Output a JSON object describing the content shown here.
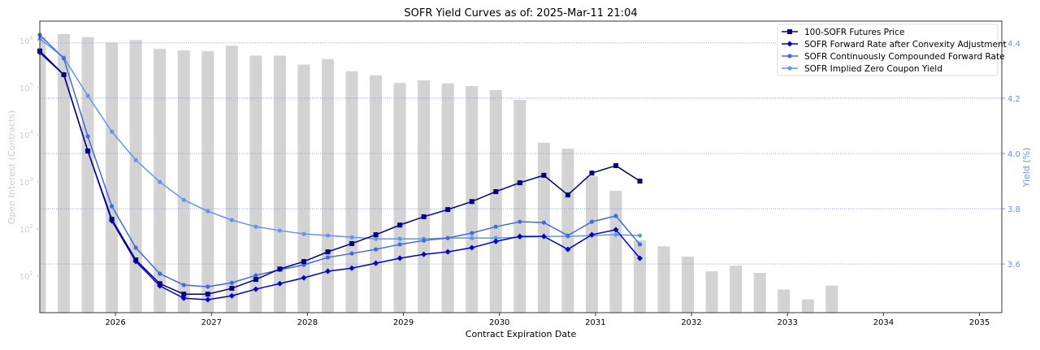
{
  "chart_data": {
    "type": "line",
    "title": "SOFR Yield Curves as of: 2025-Mar-11 21:04",
    "xlabel": "Contract Expiration Date",
    "ylabel_left": "Open Interest (Contracts)",
    "ylabel_right": "Yield (%)",
    "left_scale": "log",
    "left_ylim": [
      1.67,
      2600000
    ],
    "right_ylim": [
      3.424,
      4.479
    ],
    "xlim": [
      "2025-03",
      "2035-03"
    ],
    "x_ticks": [
      "2026",
      "2027",
      "2028",
      "2029",
      "2030",
      "2031",
      "2032",
      "2033",
      "2034",
      "2035"
    ],
    "left_ticks": [
      {
        "base": "10",
        "exp": "1",
        "value": 10
      },
      {
        "base": "10",
        "exp": "2",
        "value": 100
      },
      {
        "base": "10",
        "exp": "3",
        "value": 1000
      },
      {
        "base": "10",
        "exp": "4",
        "value": 10000
      },
      {
        "base": "10",
        "exp": "5",
        "value": 100000
      },
      {
        "base": "10",
        "exp": "6",
        "value": 1000000
      }
    ],
    "right_ticks": [
      "3.6",
      "3.8",
      "4.0",
      "4.2",
      "4.4"
    ],
    "grid": "horizontal dotted on right-axis ticks",
    "legend_placement": "top-right",
    "colors": {
      "bars": "#d3d3d3",
      "grid": "#6f8fe0",
      "left_axis_text": "#cccccc",
      "right_axis_text": "#6495ed"
    },
    "bars": {
      "name": "Open Interest",
      "axis": "left",
      "x": [
        "2025-03",
        "2025-06",
        "2025-09",
        "2025-12",
        "2026-03",
        "2026-06",
        "2026-09",
        "2026-12",
        "2027-03",
        "2027-06",
        "2027-09",
        "2027-12",
        "2028-03",
        "2028-06",
        "2028-09",
        "2028-12",
        "2029-03",
        "2029-06",
        "2029-09",
        "2029-12",
        "2030-03",
        "2030-06",
        "2030-09",
        "2030-12",
        "2031-03",
        "2031-06",
        "2031-09",
        "2031-12",
        "2032-03",
        "2032-06",
        "2032-09",
        "2032-12",
        "2033-03",
        "2033-06"
      ],
      "values": [
        1200000,
        1380000,
        1190000,
        910000,
        1030000,
        670000,
        620000,
        597000,
        780000,
        480000,
        480000,
        310000,
        406000,
        224000,
        184000,
        127000,
        143000,
        124000,
        108000,
        89000,
        55000,
        6800,
        5100,
        1320,
        650,
        57,
        43,
        26,
        12.6,
        16.6,
        11.7,
        5.2,
        3.2,
        6.3
      ]
    },
    "series": [
      {
        "name": "100-SOFR Futures Price",
        "color": "#000080",
        "marker": "square",
        "axis": "right",
        "values": [
          4.371,
          4.285,
          4.009,
          3.762,
          3.615,
          3.529,
          3.491,
          3.491,
          3.512,
          3.544,
          3.582,
          3.609,
          3.644,
          3.674,
          3.706,
          3.741,
          3.771,
          3.797,
          3.826,
          3.862,
          3.894,
          3.921,
          3.85,
          3.929,
          3.956,
          3.9
        ]
      },
      {
        "name": "SOFR Forward Rate after Convexity Adjustment",
        "color": "#0000cd",
        "marker": "diamond",
        "axis": "right",
        "values": [
          4.365,
          4.285,
          4.009,
          3.756,
          3.609,
          3.521,
          3.476,
          3.471,
          3.485,
          3.509,
          3.529,
          3.55,
          3.574,
          3.585,
          3.603,
          3.621,
          3.635,
          3.644,
          3.659,
          3.682,
          3.7,
          3.7,
          3.653,
          3.706,
          3.724,
          3.621
        ]
      },
      {
        "name": "SOFR Continuously Compounded Forward Rate",
        "color": "#4169e1",
        "marker": "circle",
        "axis": "right",
        "values": [
          4.429,
          4.344,
          4.062,
          3.809,
          3.659,
          3.565,
          3.524,
          3.518,
          3.532,
          3.559,
          3.579,
          3.597,
          3.624,
          3.638,
          3.653,
          3.671,
          3.685,
          3.694,
          3.712,
          3.735,
          3.753,
          3.75,
          3.703,
          3.753,
          3.774,
          3.671
        ]
      },
      {
        "name": "SOFR Implied Zero Coupon Yield",
        "color": "#6495ed",
        "marker": "circle",
        "axis": "right",
        "values": [
          4.415,
          4.347,
          4.209,
          4.079,
          3.976,
          3.897,
          3.832,
          3.791,
          3.759,
          3.735,
          3.721,
          3.709,
          3.703,
          3.697,
          3.691,
          3.691,
          3.691,
          3.694,
          3.694,
          3.694,
          3.697,
          3.7,
          3.7,
          3.703,
          3.706,
          3.703
        ]
      }
    ],
    "series_x": [
      "2025-03",
      "2025-06",
      "2025-09",
      "2025-12",
      "2026-03",
      "2026-06",
      "2026-09",
      "2026-12",
      "2027-03",
      "2027-06",
      "2027-09",
      "2027-12",
      "2028-03",
      "2028-06",
      "2028-09",
      "2028-12",
      "2029-03",
      "2029-06",
      "2029-09",
      "2029-12",
      "2030-03",
      "2030-06",
      "2030-09",
      "2030-12",
      "2031-03",
      "2031-06"
    ]
  }
}
